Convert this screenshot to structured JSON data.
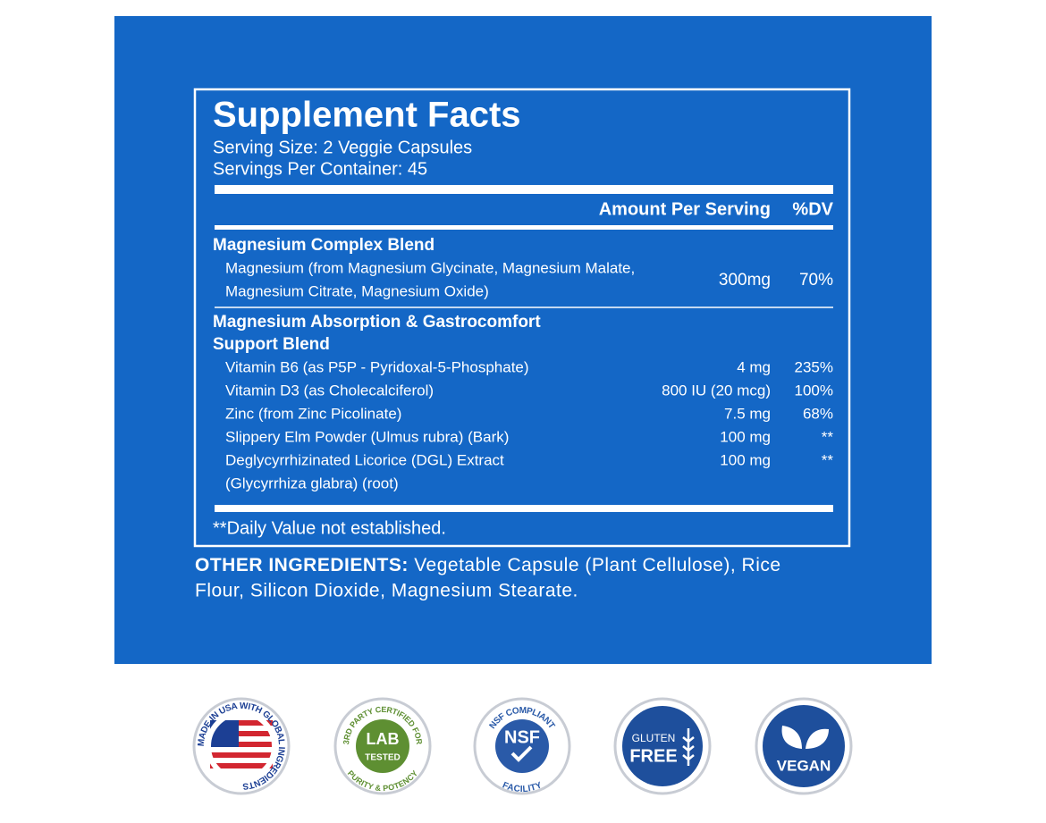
{
  "panel": {
    "title": "Supplement Facts",
    "serving_size": "Serving Size: 2 Veggie Capsules",
    "servings_per_container": "Servings Per Container: 45",
    "header": {
      "amount": "Amount Per Serving",
      "dv": "%DV"
    },
    "sections": [
      {
        "title_lines": [
          "Magnesium Complex Blend"
        ],
        "rows": [
          {
            "name_lines": [
              "Magnesium (from Magnesium Glycinate, Magnesium Malate,",
              "Magnesium Citrate, Magnesium Oxide)"
            ],
            "amount": "300mg",
            "dv": "70%"
          }
        ]
      },
      {
        "title_lines": [
          "Magnesium Absorption & Gastrocomfort",
          "Support Blend"
        ],
        "rows": [
          {
            "name_lines": [
              "Vitamin B6 (as P5P - Pyridoxal-5-Phosphate)"
            ],
            "amount": "4 mg",
            "dv": "235%"
          },
          {
            "name_lines": [
              "Vitamin D3 (as Cholecalciferol)"
            ],
            "amount": "800 IU (20 mcg)",
            "dv": "100%"
          },
          {
            "name_lines": [
              "Zinc (from Zinc Picolinate)"
            ],
            "amount": "7.5 mg",
            "dv": "68%"
          },
          {
            "name_lines": [
              "Slippery Elm Powder (Ulmus rubra) (Bark)"
            ],
            "amount": "100 mg",
            "dv": "**"
          },
          {
            "name_lines": [
              "Deglycyrrhizinated Licorice (DGL) Extract",
              "(Glycyrrhiza glabra) (root)"
            ],
            "amount": "100 mg",
            "dv": "**"
          }
        ]
      }
    ],
    "footnote": "**Daily Value not established."
  },
  "other_ingredients": {
    "label": "OTHER INGREDIENTS:",
    "lines": [
      "Vegetable Capsule (Plant Cellulose), Rice",
      "Flour, Silicon Dioxide, Magnesium Stearate."
    ]
  },
  "badges": [
    {
      "ring": "MADE IN USA WITH GLOBAL INGREDIENTS"
    },
    {
      "ring_top": "3RD PARTY CERTIFIED FOR",
      "center": [
        "LAB",
        "TESTED"
      ],
      "ring_bottom": "PURITY & POTENCY"
    },
    {
      "ring_top": "NSF COMPLIANT",
      "center": [
        "NSF"
      ],
      "ring_bottom": "FACILITY"
    },
    {
      "center": [
        "GLUTEN",
        "FREE"
      ]
    },
    {
      "center": [
        "VEGAN"
      ]
    }
  ]
}
